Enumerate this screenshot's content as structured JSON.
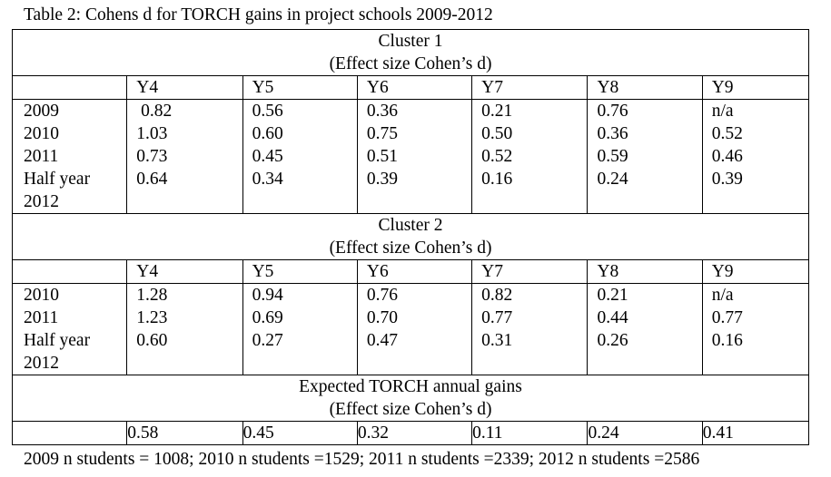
{
  "caption": "Table 2: Cohens d for TORCH gains in project schools 2009-2012",
  "footnote": "2009 n students = 1008; 2010 n students =1529; 2011 n students =2339; 2012 n students =2586",
  "year_headers": [
    "Y4",
    "Y5",
    "Y6",
    "Y7",
    "Y8",
    "Y9"
  ],
  "cluster1": {
    "title": "Cluster 1",
    "subtitle": "(Effect size Cohen’s d)",
    "row_labels": [
      "2009",
      "2010",
      "2011",
      "Half year",
      "2012"
    ],
    "columns": [
      [
        " 0.82",
        "1.03",
        "0.73",
        "0.64"
      ],
      [
        "0.56",
        "0.60",
        "0.45",
        "0.34"
      ],
      [
        "0.36",
        "0.75",
        "0.51",
        "0.39"
      ],
      [
        "0.21",
        "0.50",
        "0.52",
        "0.16"
      ],
      [
        "0.76",
        "0.36",
        "0.59",
        "0.24"
      ],
      [
        "n/a",
        "0.52",
        "0.46",
        "0.39"
      ]
    ]
  },
  "cluster2": {
    "title": "Cluster 2",
    "subtitle": "(Effect size Cohen’s d)",
    "row_labels": [
      "2010",
      "2011",
      "Half year",
      "2012"
    ],
    "columns": [
      [
        "1.28",
        "1.23",
        "0.60"
      ],
      [
        "0.94",
        "0.69",
        "0.27"
      ],
      [
        "0.76",
        "0.70",
        "0.47"
      ],
      [
        "0.82",
        "0.77",
        "0.31"
      ],
      [
        "0.21",
        "0.44",
        "0.26"
      ],
      [
        "n/a",
        "0.77",
        "0.16"
      ]
    ]
  },
  "expected": {
    "title": "Expected TORCH annual gains",
    "subtitle": "(Effect size Cohen’s d)",
    "values": [
      "0.58",
      "0.45",
      "0.32",
      "0.11",
      "0.24",
      "0.41"
    ]
  }
}
